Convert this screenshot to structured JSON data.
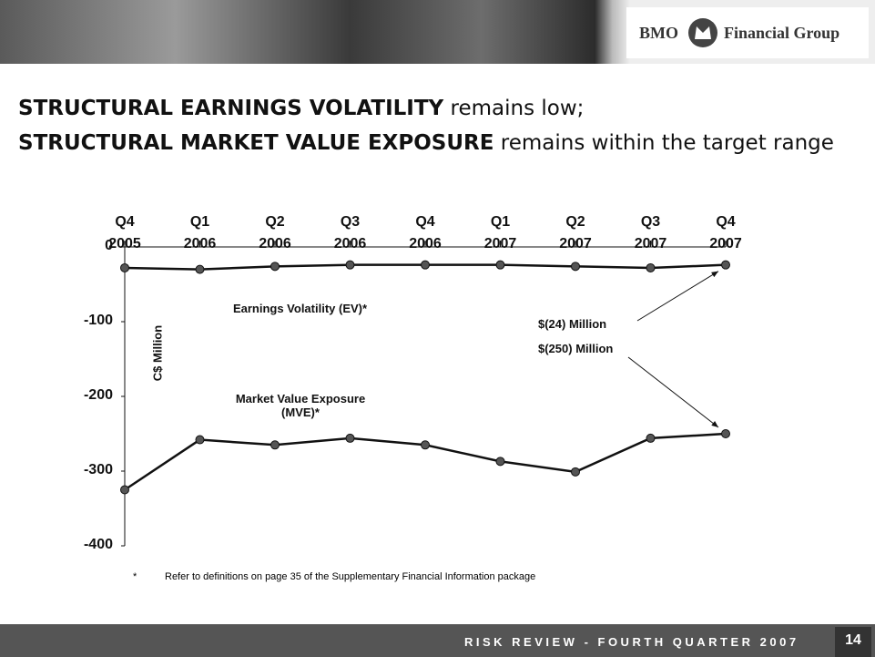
{
  "header": {
    "brand": "BMO",
    "group": "Financial Group"
  },
  "title": {
    "lines": [
      {
        "bold": "STRUCTURAL EARNINGS VOLATILITY",
        "rest": " remains low;"
      },
      {
        "bold": "STRUCTURAL MARKET VALUE EXPOSURE",
        "rest": " remains within the target range"
      }
    ]
  },
  "chart_data": {
    "type": "line",
    "y_label": "C$ Million",
    "categories": [
      [
        "Q4",
        "2005"
      ],
      [
        "Q1",
        "2006"
      ],
      [
        "Q2",
        "2006"
      ],
      [
        "Q3",
        "2006"
      ],
      [
        "Q4",
        "2006"
      ],
      [
        "Q1",
        "2007"
      ],
      [
        "Q2",
        "2007"
      ],
      [
        "Q3",
        "2007"
      ],
      [
        "Q4",
        "2007"
      ]
    ],
    "series": [
      {
        "name": "Earnings Volatility (EV)*",
        "color": "#111111",
        "values": [
          -28,
          -30,
          -26,
          -24,
          -24,
          -24,
          -26,
          -28,
          -24
        ]
      },
      {
        "name": "Market Value Exposure (MVE)*",
        "color": "#111111",
        "values": [
          -325,
          -258,
          -265,
          -256,
          -265,
          -287,
          -301,
          -256,
          -250
        ]
      }
    ],
    "ylim": [
      -400,
      0
    ],
    "yticks": [
      0,
      -100,
      -200,
      -300,
      -400
    ],
    "annotations": [
      "$(24) Million",
      "$(250) Million"
    ]
  },
  "footnote": {
    "mark": "*",
    "text": "Refer to definitions on page 35 of the Supplementary Financial Information package"
  },
  "footer": {
    "text": "RISK REVIEW - FOURTH QUARTER 2007",
    "page": "14"
  }
}
